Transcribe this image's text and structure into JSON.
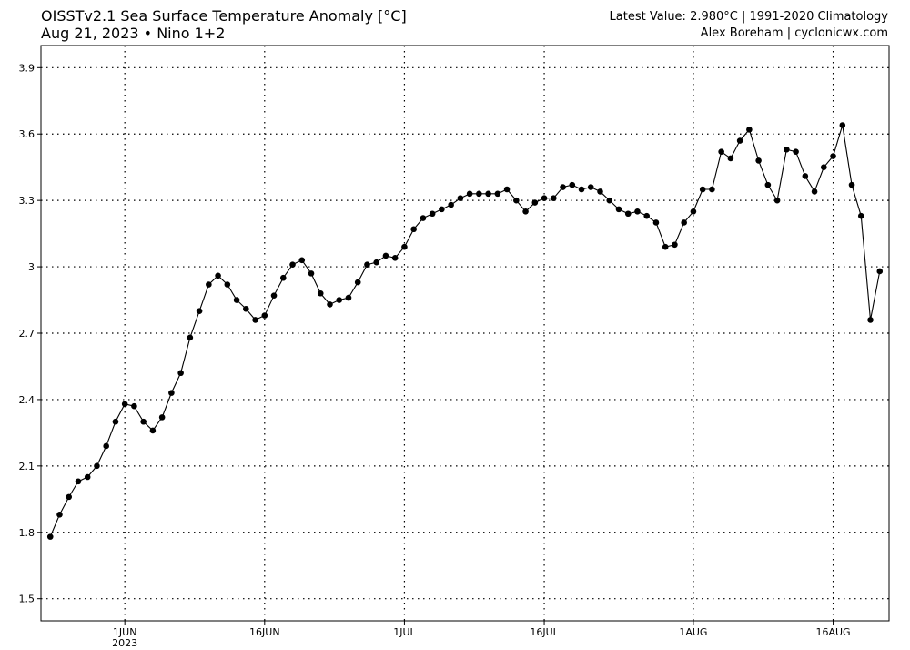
{
  "header": {
    "title_line1": "OISSTv2.1 Sea Surface Temperature Anomaly [°C]",
    "title_line2": "Aug 21, 2023 • Nino 1+2",
    "info_line1": "Latest Value: 2.980°C | 1991-2020 Climatology",
    "info_line2": "Alex Boreham | cyclonicwx.com"
  },
  "chart_data": {
    "type": "line",
    "title": "OISSTv2.1 Sea Surface Temperature Anomaly [°C]",
    "subtitle": "Aug 21, 2023 • Nino 1+2",
    "xlabel": "",
    "ylabel": "",
    "x_start_date": "2023-05-24",
    "x_end_date": "2023-08-21",
    "xlim": [
      "2023-05-23",
      "2023-08-22"
    ],
    "ylim": [
      1.4,
      4.0
    ],
    "grid": true,
    "marker": "circle",
    "line_color": "#000000",
    "y_ticks": [
      1.5,
      1.8,
      2.1,
      2.4,
      2.7,
      3,
      3.3,
      3.6,
      3.9
    ],
    "y_tick_labels": [
      "1.5",
      "1.8",
      "2.1",
      "2.4",
      "2.7",
      "3",
      "3.3",
      "3.6",
      "3.9"
    ],
    "x_ticks": [
      {
        "date": "2023-06-01",
        "label": "1JUN",
        "sublabel": "2023"
      },
      {
        "date": "2023-06-16",
        "label": "16JUN",
        "sublabel": ""
      },
      {
        "date": "2023-07-01",
        "label": "1JUL",
        "sublabel": ""
      },
      {
        "date": "2023-07-16",
        "label": "16JUL",
        "sublabel": ""
      },
      {
        "date": "2023-08-01",
        "label": "1AUG",
        "sublabel": ""
      },
      {
        "date": "2023-08-16",
        "label": "16AUG",
        "sublabel": ""
      }
    ],
    "series": [
      {
        "values": [
          1.78,
          1.88,
          1.96,
          2.03,
          2.05,
          2.1,
          2.19,
          2.3,
          2.38,
          2.37,
          2.3,
          2.26,
          2.32,
          2.43,
          2.52,
          2.68,
          2.8,
          2.92,
          2.96,
          2.92,
          2.85,
          2.81,
          2.76,
          2.78,
          2.87,
          2.95,
          3.01,
          3.03,
          2.97,
          2.88,
          2.83,
          2.85,
          2.86,
          2.93,
          3.01,
          3.02,
          3.05,
          3.04,
          3.09,
          3.17,
          3.22,
          3.24,
          3.26,
          3.28,
          3.31,
          3.33,
          3.33,
          3.33,
          3.33,
          3.35,
          3.3,
          3.25,
          3.29,
          3.31,
          3.31,
          3.36,
          3.37,
          3.35,
          3.36,
          3.34,
          3.3,
          3.26,
          3.24,
          3.25,
          3.23,
          3.2,
          3.09,
          3.1,
          3.2,
          3.25,
          3.35,
          3.35,
          3.52,
          3.49,
          3.57,
          3.62,
          3.48,
          3.37,
          3.3,
          3.53,
          3.52,
          3.41,
          3.34,
          3.45,
          3.5,
          3.64,
          3.37,
          3.23,
          2.76,
          2.98
        ]
      }
    ]
  }
}
